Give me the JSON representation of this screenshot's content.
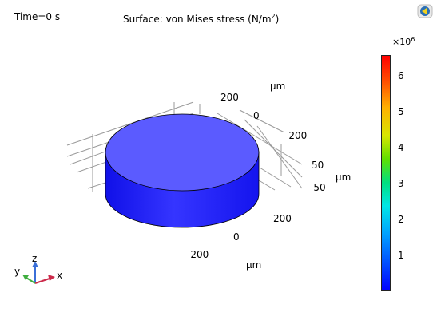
{
  "header": {
    "time_label": "Time=0 s",
    "title_prefix": "Surface: von Mises stress (N/m",
    "title_exp": "2",
    "title_suffix": ")"
  },
  "logo": {
    "icon": "comsol-logo-icon"
  },
  "axes": {
    "unit": "μm",
    "y_ticks": [
      "200",
      "0",
      "-200"
    ],
    "z_ticks": [
      "50",
      "-50"
    ],
    "x_ticks": [
      "200",
      "0",
      "-200"
    ]
  },
  "triad": {
    "x": "x",
    "y": "y",
    "z": "z"
  },
  "colorbar": {
    "multiplier": "×10",
    "multiplier_exp": "6",
    "labels": [
      "6",
      "5",
      "4",
      "3",
      "2",
      "1"
    ]
  },
  "colors": {
    "cylinder_top": "#5b5bff",
    "cylinder_side": "#1f1fff",
    "grid": "#9a9a9a"
  }
}
